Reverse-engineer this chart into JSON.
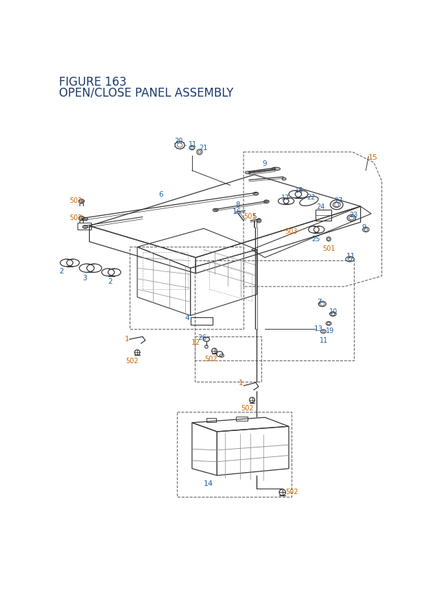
{
  "title_line1": "FIGURE 163",
  "title_line2": "OPEN/CLOSE PANEL ASSEMBLY",
  "title_color": "#1a3a6b",
  "title_fontsize": 12,
  "bg_color": "#ffffff",
  "oc": "#cc6600",
  "bc": "#1a5fa8",
  "lc": "#333333",
  "dc": "#666666"
}
